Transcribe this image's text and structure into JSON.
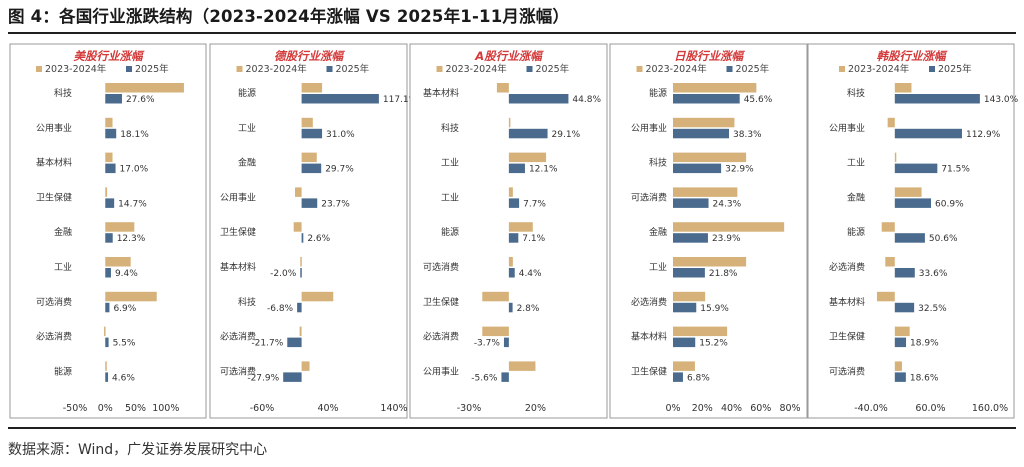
{
  "figure": {
    "title": "图 4：各国行业涨跌结构（2023-2024年涨幅 VS 2025年1-11月涨幅）",
    "source": "数据来源：Wind，广发证券发展研究中心"
  },
  "colors": {
    "s2324": "#d6b27a",
    "s2025": "#4a6b8e",
    "panel_title": "#d43a3a"
  },
  "chart_data": [
    {
      "type": "bar",
      "orientation": "horizontal",
      "title": "美股行业涨幅",
      "legend": [
        "2023-2024年",
        "2025年"
      ],
      "categories": [
        "科技",
        "公用事业",
        "基本材料",
        "卫生保健",
        "金融",
        "工业",
        "可选消费",
        "必选消费",
        "能源"
      ],
      "series": [
        {
          "name": "2023-2024年",
          "values": [
            130,
            12,
            12,
            3,
            48,
            42,
            85,
            -2,
            2
          ]
        },
        {
          "name": "2025年",
          "values": [
            27.6,
            18.1,
            17.0,
            14.7,
            12.3,
            9.4,
            6.9,
            5.5,
            4.6
          ]
        }
      ],
      "value_labels": [
        "27.6%",
        "18.1%",
        "17.0%",
        "14.7%",
        "12.3%",
        "9.4%",
        "6.9%",
        "5.5%",
        "4.6%"
      ],
      "xlim": [
        -50,
        140
      ],
      "ticks": [
        -50,
        0,
        50,
        100
      ],
      "tick_labels": [
        "-50%",
        "0%",
        "50%",
        "100%"
      ]
    },
    {
      "type": "bar",
      "orientation": "horizontal",
      "title": "德股行业涨幅",
      "legend": [
        "2023-2024年",
        "2025年"
      ],
      "categories": [
        "能源",
        "工业",
        "金融",
        "公用事业",
        "卫生保健",
        "基本材料",
        "科技",
        "必选消费",
        "可选消费"
      ],
      "series": [
        {
          "name": "2023-2024年",
          "values": [
            31,
            17,
            23,
            -10,
            -12,
            -2,
            48,
            -3,
            12
          ]
        },
        {
          "name": "2025年",
          "values": [
            117.1,
            31.0,
            29.7,
            23.7,
            2.6,
            -2.0,
            -6.8,
            -21.7,
            -27.9
          ]
        }
      ],
      "value_labels": [
        "117.1%",
        "31.0%",
        "29.7%",
        "23.7%",
        "2.6%",
        "-2.0%",
        "-6.8%",
        "-21.7%",
        "-27.9%"
      ],
      "xlim": [
        -60,
        140
      ],
      "ticks": [
        -60,
        40,
        140
      ],
      "tick_labels": [
        "-60%",
        "40%",
        "140%"
      ]
    },
    {
      "type": "bar",
      "orientation": "horizontal",
      "title": "A股行业涨幅",
      "legend": [
        "2023-2024年",
        "2025年"
      ],
      "categories": [
        "基本材料",
        "科技",
        "工业",
        "工业",
        "能源",
        "可选消费",
        "卫生保健",
        "必选消费",
        "公用事业"
      ],
      "series": [
        {
          "name": "2023-2024年",
          "values": [
            -9,
            0,
            28,
            3,
            18,
            3,
            -20,
            -20,
            20
          ]
        },
        {
          "name": "2025年",
          "values": [
            44.8,
            29.1,
            12.1,
            7.7,
            7.1,
            4.4,
            2.8,
            -3.7,
            -5.6
          ]
        }
      ],
      "value_labels": [
        "44.8%",
        "29.1%",
        "12.1%",
        "7.7%",
        "7.1%",
        "4.4%",
        "2.8%",
        "-3.7%",
        "-5.6%"
      ],
      "xlim": [
        -33,
        52
      ],
      "ticks": [
        -30,
        20
      ],
      "tick_labels": [
        "-30%",
        "20%"
      ]
    },
    {
      "type": "bar",
      "orientation": "horizontal",
      "title": "日股行业涨幅",
      "legend": [
        "2023-2024年",
        "2025年"
      ],
      "categories": [
        "能源",
        "公用事业",
        "科技",
        "可选消费",
        "金融",
        "工业",
        "必选消费",
        "基本材料",
        "卫生保健"
      ],
      "series": [
        {
          "name": "2023-2024年",
          "values": [
            57,
            42,
            50,
            44,
            76,
            50,
            22,
            37,
            15
          ]
        },
        {
          "name": "2025年",
          "values": [
            45.6,
            38.3,
            32.9,
            24.3,
            23.9,
            21.8,
            15.9,
            15.2,
            6.8
          ]
        }
      ],
      "value_labels": [
        "45.6%",
        "38.3%",
        "32.9%",
        "24.3%",
        "23.9%",
        "21.8%",
        "15.9%",
        "15.2%",
        "6.8%"
      ],
      "xlim": [
        0,
        80
      ],
      "ticks": [
        0,
        20,
        40,
        60,
        80
      ],
      "tick_labels": [
        "0%",
        "20%",
        "40%",
        "60%",
        "80%"
      ]
    },
    {
      "type": "bar",
      "orientation": "horizontal",
      "title": "韩股行业涨幅",
      "legend": [
        "2023-2024年",
        "2025年"
      ],
      "categories": [
        "科技",
        "公用事业",
        "工业",
        "金融",
        "能源",
        "必选消费",
        "基本材料",
        "卫生保健",
        "可选消费"
      ],
      "series": [
        {
          "name": "2023-2024年",
          "values": [
            28,
            -12,
            2,
            45,
            -22,
            -16,
            -30,
            25,
            12
          ]
        },
        {
          "name": "2025年",
          "values": [
            143.0,
            112.9,
            71.5,
            60.9,
            50.6,
            33.6,
            32.5,
            18.9,
            18.6
          ]
        }
      ],
      "value_labels": [
        "143.0%",
        "112.9%",
        "71.5%",
        "60.9%",
        "50.6%",
        "33.6%",
        "32.5%",
        "18.9%",
        "18.6%"
      ],
      "xlim": [
        -40,
        160
      ],
      "ticks": [
        -40,
        60,
        160
      ],
      "tick_labels": [
        "-40.0%",
        "60.0%",
        "160.0%"
      ]
    }
  ]
}
